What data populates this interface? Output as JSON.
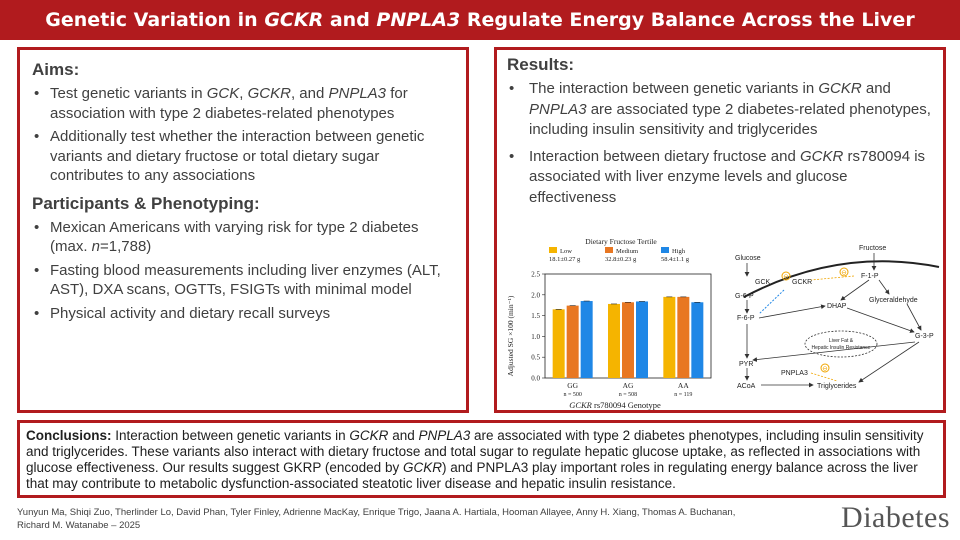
{
  "title": {
    "part1": "Genetic Variation in ",
    "gene1": "GCKR",
    "part2": " and ",
    "gene2": "PNPLA3",
    "part3": " Regulate Energy Balance Across the Liver"
  },
  "aims": {
    "heading": "Aims:",
    "items": [
      {
        "a": "Test genetic variants in ",
        "g1": "GCK",
        "b": ", ",
        "g2": "GCKR",
        "c": ", and ",
        "g3": "PNPLA3",
        "d": " for association with type 2 diabetes-related phenotypes"
      },
      "Additionally test whether the interaction between genetic variants and dietary fructose or total dietary sugar contributes to any associations"
    ]
  },
  "participants": {
    "heading": "Participants & Phenotyping:",
    "items": [
      {
        "a": "Mexican Americans with varying risk for type 2 diabetes (max. ",
        "n": "n",
        "b": "=1,788)"
      },
      "Fasting blood measurements including liver enzymes (ALT, AST), DXA scans, OGTTs, FSIGTs with minimal model",
      "Physical activity and dietary recall surveys"
    ]
  },
  "results": {
    "heading": "Results:",
    "items": [
      {
        "a": "The interaction between genetic variants in ",
        "g1": "GCKR",
        "b": " and ",
        "g2": "PNPLA3",
        "c": " are associated type 2 diabetes-related phenotypes, including insulin sensitivity and triglycerides"
      },
      {
        "a": "Interaction between dietary fructose and ",
        "g1": "GCKR",
        "b": " rs780094 is associated with liver enzyme levels and glucose effectiveness"
      }
    ]
  },
  "chart_data": {
    "type": "bar",
    "title": "Dietary Fructose Tertile",
    "categories": [
      "GG",
      "AG",
      "AA"
    ],
    "category_n": [
      "n = 500",
      "n = 508",
      "n = 119"
    ],
    "series": [
      {
        "name": "Low",
        "subtitle": "18.1±0.27 g",
        "color": "#f5b400",
        "values": [
          1.65,
          1.78,
          1.95
        ]
      },
      {
        "name": "Medium",
        "subtitle": "32.8±0.23 g",
        "color": "#e87722",
        "values": [
          1.74,
          1.82,
          1.95
        ]
      },
      {
        "name": "High",
        "subtitle": "58.4±1.1 g",
        "color": "#1f87e6",
        "values": [
          1.85,
          1.84,
          1.82
        ]
      }
    ],
    "xlabel_gene": "GCKR",
    "xlabel_rest": " rs780094 Genotype",
    "ylabel": "Adjusted SG ×100 (min⁻¹)",
    "yticks": [
      "0.0",
      "0.5",
      "1.0",
      "1.5",
      "2.0",
      "2.5"
    ],
    "ylim": [
      0,
      2.5
    ]
  },
  "diagram": {
    "fructose": "Fructose",
    "glucose": "Glucose",
    "gck": "GCK",
    "gckr": "GCKR",
    "f1p": "F-1-P",
    "g6p": "G-6-P",
    "f6p": "F-6-P",
    "dhap": "DHAP",
    "glyceraldehyde": "Glyceraldehyde",
    "g3p": "G-3-P",
    "liver_fat_1": "Liver Fat &",
    "liver_fat_2": "Hepatic Insulin Resistance",
    "pyr": "PYR",
    "pnpla3": "PNPLA3",
    "acoa": "ACoA",
    "triglycerides": "Triglycerides"
  },
  "conclusions": {
    "label": "Conclusions:",
    "t1": "  Interaction between genetic variants in ",
    "g1": "GCKR",
    "t2": " and ",
    "g2": "PNPLA3",
    "t3": " are associated with type 2 diabetes phenotypes, including insulin sensitivity and triglycerides.  These variants also interact with dietary fructose and total sugar to regulate hepatic glucose uptake, as reflected in associations with glucose effectiveness.  Our results suggest GKRP (encoded by ",
    "g3": "GCKR",
    "t4": ") and PNPLA3 play important roles in regulating energy balance across the liver that may contribute to metabolic dysfunction-associated steatotic liver disease and hepatic insulin resistance."
  },
  "authors": {
    "line1": "Yunyun Ma, Shiqi Zuo, Therlinder Lo, David Phan, Tyler Finley, Adrienne MacKay, Enrique Trigo, Jaana A. Hartiala, Hooman Allayee, Anny H. Xiang, Thomas A. Buchanan,",
    "line2": "Richard M. Watanabe – 2025"
  },
  "journal": "Diabetes"
}
